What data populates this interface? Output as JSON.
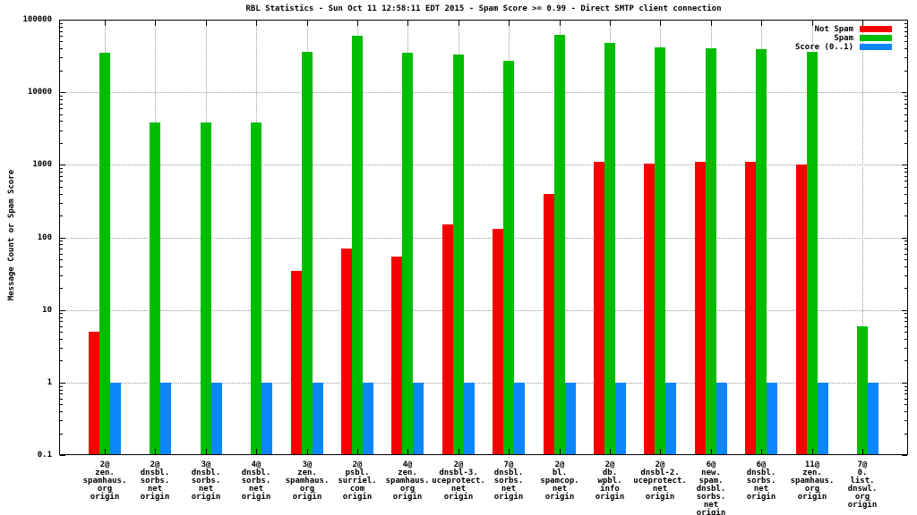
{
  "chart_data": {
    "type": "bar",
    "title": "RBL Statistics - Sun Oct 11 12:58:11 EDT 2015 - Spam Score >= 0.99 - Direct SMTP client connection",
    "ylabel": "Message Count or Spam Score",
    "yscale": "log",
    "ylim": [
      0.1,
      100000
    ],
    "y_ticks": [
      "100000",
      "10000",
      "1000",
      "100",
      "10",
      "1",
      "0.1"
    ],
    "y_tick_values": [
      100000,
      10000,
      1000,
      100,
      10,
      1,
      0.1
    ],
    "grid": true,
    "legend_position": "top-right",
    "categories": [
      [
        "2@",
        "zen.",
        "spamhaus.",
        "org",
        "origin"
      ],
      [
        "2@",
        "dnsbl.",
        "sorbs.",
        "net",
        "origin"
      ],
      [
        "3@",
        "dnsbl.",
        "sorbs.",
        "net",
        "origin"
      ],
      [
        "4@",
        "dnsbl.",
        "sorbs.",
        "net",
        "origin"
      ],
      [
        "3@",
        "zen.",
        "spamhaus.",
        "org",
        "origin"
      ],
      [
        "2@",
        "psbl.",
        "surriel.",
        "com",
        "origin"
      ],
      [
        "4@",
        "zen.",
        "spamhaus.",
        "org",
        "origin"
      ],
      [
        "2@",
        "dnsbl-3.",
        "uceprotect.",
        "net",
        "origin"
      ],
      [
        "7@",
        "dnsbl.",
        "sorbs.",
        "net",
        "origin"
      ],
      [
        "2@",
        "bl.",
        "spamcop.",
        "net",
        "origin"
      ],
      [
        "2@",
        "db.",
        "wpbl.",
        "info",
        "origin"
      ],
      [
        "2@",
        "dnsbl-2.",
        "uceprotect.",
        "net",
        "origin"
      ],
      [
        "6@",
        "new.",
        "spam.",
        "dnsbl.",
        "sorbs.",
        "net",
        "origin"
      ],
      [
        "6@",
        "dnsbl.",
        "sorbs.",
        "net",
        "origin"
      ],
      [
        "11@",
        "zen.",
        "spamhaus.",
        "org",
        "origin"
      ],
      [
        "7@",
        "0.",
        "list.",
        "dnswl.",
        "org",
        "origin"
      ]
    ],
    "series": [
      {
        "name": "Not Spam",
        "color": "#f80000",
        "values": [
          5,
          null,
          null,
          null,
          35,
          70,
          55,
          150,
          130,
          400,
          1100,
          1050,
          1100,
          1100,
          1000,
          null
        ]
      },
      {
        "name": "Spam",
        "color": "#00bd00",
        "values": [
          35000,
          3800,
          3800,
          3800,
          36000,
          60000,
          35000,
          33000,
          27000,
          62000,
          48000,
          42000,
          40000,
          39000,
          36000,
          6
        ]
      },
      {
        "name": "Score (0..1)",
        "color": "#0b86fb",
        "values": [
          1,
          1,
          1,
          1,
          1,
          1,
          1,
          1,
          1,
          1,
          1,
          1,
          1,
          1,
          1,
          1
        ]
      }
    ]
  }
}
